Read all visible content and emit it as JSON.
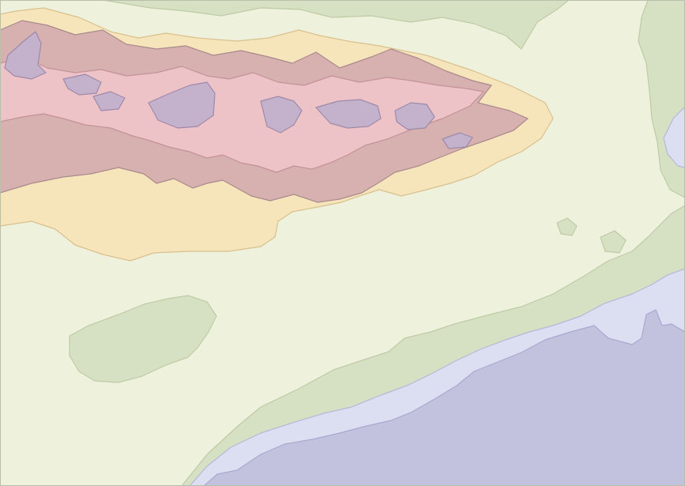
{
  "map": {
    "type": "elevation-and-bathymetry-tint-map",
    "labels": [],
    "palette": {
      "deep_sea": "#c2c2df",
      "shelf_sea": "#dcdff1",
      "coastal_lowland": "#d6e0c2",
      "plain": "#eef2dc",
      "hills": "#f6e4bb",
      "mountains": "#d7b0b0",
      "high_mountains": "#eec3c8",
      "summits": "#c4b1cc",
      "zone_outline_dark": "#a98a8c",
      "zone_outline_light": "#c9b38a"
    }
  }
}
